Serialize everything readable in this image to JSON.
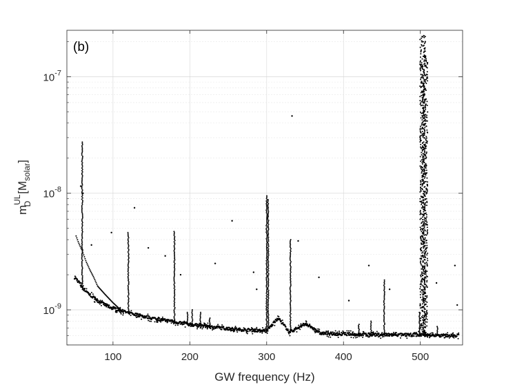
{
  "chart_data": {
    "type": "scatter",
    "panel_label": "(b)",
    "xlabel": "GW frequency (Hz)",
    "ylabel": "m_D^UL [M_solar]",
    "ylabel_parts": {
      "base": "m",
      "sub": "D",
      "sup": "UL",
      "unit_open": "[M",
      "unit_sub": "solar",
      "unit_close": "]"
    },
    "xlim": [
      40,
      555
    ],
    "ylim": [
      5e-10,
      2.5e-07
    ],
    "yscale": "log",
    "grid": true,
    "x_ticks": [
      100,
      200,
      300,
      400,
      500
    ],
    "x_tick_labels": [
      "100",
      "200",
      "300",
      "400",
      "500"
    ],
    "y_ticks": [
      1e-09,
      1e-08,
      1e-07
    ],
    "y_tick_labels": [
      {
        "base": "10",
        "exp": "-9"
      },
      {
        "base": "10",
        "exp": "-8"
      },
      {
        "base": "10",
        "exp": "-7"
      }
    ],
    "marker_color": "#000000",
    "baseline": {
      "x": [
        50,
        55,
        60,
        70,
        80,
        90,
        100,
        120,
        150,
        180,
        200,
        230,
        260,
        300,
        315,
        330,
        350,
        370,
        400,
        450,
        500,
        530,
        550
      ],
      "y": [
        1.9e-09,
        1.75e-09,
        1.55e-09,
        1.35e-09,
        1.2e-09,
        1.1e-09,
        1.03e-09,
        9.4e-10,
        8.5e-10,
        7.9e-10,
        7.5e-10,
        7.1e-10,
        6.8e-10,
        6.6e-10,
        8.5e-10,
        6.4e-10,
        7.6e-10,
        6.3e-10,
        6.2e-10,
        6.1e-10,
        6.1e-10,
        6e-10,
        6e-10
      ]
    },
    "secondary_curve": {
      "x": [
        52,
        55,
        60,
        65,
        70,
        75,
        80,
        90,
        100,
        110
      ],
      "y": [
        4.3e-09,
        3.8e-09,
        3.2e-09,
        2.6e-09,
        2.2e-09,
        1.9e-09,
        1.6e-09,
        1.35e-09,
        1.15e-09,
        1e-09
      ]
    },
    "spikes": [
      {
        "x": 60,
        "peak": 2.75e-08
      },
      {
        "x": 120,
        "peak": 4.6e-09
      },
      {
        "x": 180,
        "peak": 4.7e-09
      },
      {
        "x": 197,
        "peak": 9.5e-10
      },
      {
        "x": 203,
        "peak": 1e-09
      },
      {
        "x": 214,
        "peak": 9.5e-10
      },
      {
        "x": 226,
        "peak": 8.5e-10
      },
      {
        "x": 300,
        "peak": 9.5e-09
      },
      {
        "x": 302,
        "peak": 8.8e-09
      },
      {
        "x": 331,
        "peak": 4e-09
      },
      {
        "x": 420,
        "peak": 7.5e-10
      },
      {
        "x": 436,
        "peak": 8e-10
      },
      {
        "x": 453,
        "peak": 1.8e-09
      },
      {
        "x": 499,
        "peak": 9.5e-10
      },
      {
        "x": 503,
        "peak": 2.25e-07
      },
      {
        "x": 506,
        "peak": 1.5e-07
      },
      {
        "x": 522,
        "peak": 7.2e-10
      }
    ],
    "scattered_points": [
      {
        "x": 58,
        "y": 1.15e-08
      },
      {
        "x": 61,
        "y": 1e-08
      },
      {
        "x": 72,
        "y": 3.6e-09
      },
      {
        "x": 98,
        "y": 4.6e-09
      },
      {
        "x": 128,
        "y": 7.5e-09
      },
      {
        "x": 146,
        "y": 3.4e-09
      },
      {
        "x": 168,
        "y": 2.9e-09
      },
      {
        "x": 188,
        "y": 2e-09
      },
      {
        "x": 233,
        "y": 2.5e-09
      },
      {
        "x": 255,
        "y": 5.8e-09
      },
      {
        "x": 283,
        "y": 2.1e-09
      },
      {
        "x": 287,
        "y": 1.5e-09
      },
      {
        "x": 333,
        "y": 4.6e-08
      },
      {
        "x": 341,
        "y": 3.9e-09
      },
      {
        "x": 368,
        "y": 1.9e-09
      },
      {
        "x": 407,
        "y": 1.2e-09
      },
      {
        "x": 433,
        "y": 2.4e-09
      },
      {
        "x": 460,
        "y": 1.5e-09
      },
      {
        "x": 521,
        "y": 1.7e-09
      },
      {
        "x": 545,
        "y": 2.4e-09
      },
      {
        "x": 548,
        "y": 1.1e-09
      }
    ]
  }
}
